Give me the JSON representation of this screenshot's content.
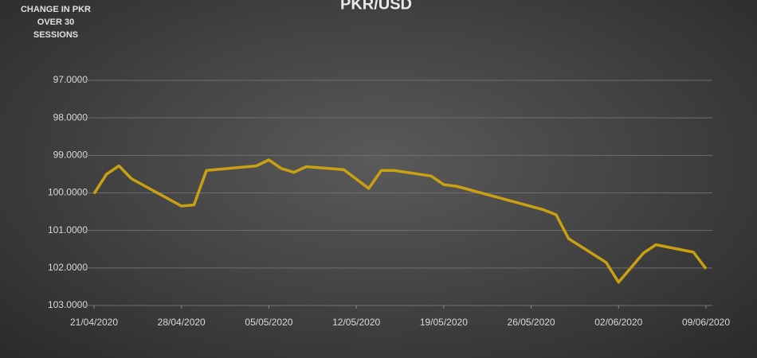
{
  "chart_data": {
    "type": "line",
    "title": "PKR/USD",
    "ylabel": "CHANGE IN PKR OVER 30 SESSIONS",
    "x": [
      "21/04/2020",
      "22/04/2020",
      "23/04/2020",
      "24/04/2020",
      "28/04/2020",
      "29/04/2020",
      "30/04/2020",
      "04/05/2020",
      "05/05/2020",
      "06/05/2020",
      "07/05/2020",
      "08/05/2020",
      "11/05/2020",
      "13/05/2020",
      "14/05/2020",
      "15/05/2020",
      "18/05/2020",
      "19/05/2020",
      "20/05/2020",
      "27/05/2020",
      "28/05/2020",
      "29/05/2020",
      "01/06/2020",
      "02/06/2020",
      "04/06/2020",
      "05/06/2020",
      "08/06/2020",
      "09/06/2020"
    ],
    "values": [
      100.02,
      99.5,
      99.28,
      99.62,
      100.35,
      100.32,
      99.4,
      99.28,
      99.12,
      99.35,
      99.45,
      99.3,
      99.38,
      99.88,
      99.4,
      99.4,
      99.55,
      99.78,
      99.82,
      100.45,
      100.58,
      101.22,
      101.85,
      102.38,
      101.6,
      101.38,
      101.58,
      102.02
    ],
    "color": "#c9a012",
    "xlim": [
      "21/04/2020",
      "09/06/2020"
    ],
    "xticks": [
      "21/04/2020",
      "28/04/2020",
      "05/05/2020",
      "12/05/2020",
      "19/05/2020",
      "26/05/2020",
      "02/06/2020",
      "09/06/2020"
    ],
    "ylim": [
      97,
      103
    ],
    "inverted": true,
    "yticks": [
      {
        "value": 97,
        "label": "97.0000"
      },
      {
        "value": 98,
        "label": "98.0000"
      },
      {
        "value": 99,
        "label": "99.0000"
      },
      {
        "value": 100,
        "label": "100.0000"
      },
      {
        "value": 101,
        "label": "101.0000"
      },
      {
        "value": 102,
        "label": "102.0000"
      },
      {
        "value": 103,
        "label": "103.0000"
      }
    ],
    "grid": true
  }
}
